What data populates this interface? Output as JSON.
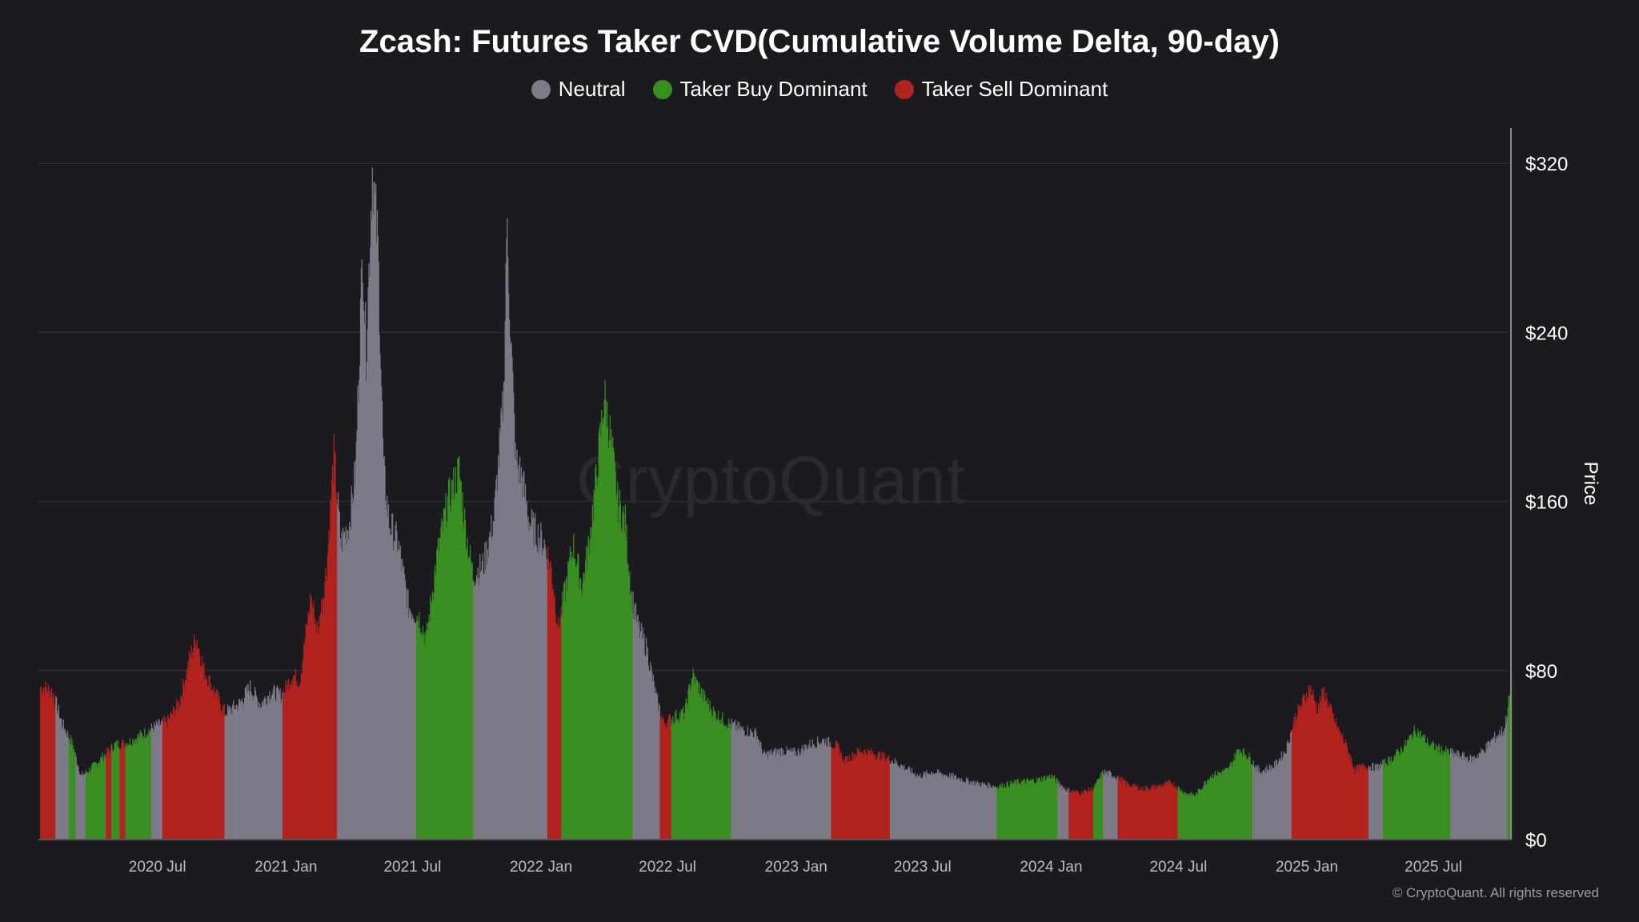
{
  "chart_data": {
    "type": "bar",
    "title": "Zcash: Futures Taker CVD(Cumulative Volume Delta, 90-day)",
    "ylabel": "Price",
    "ylim": [
      0,
      320
    ],
    "y_ticks": [
      "$0",
      "$80",
      "$160",
      "$240",
      "$320"
    ],
    "y_tick_values": [
      0,
      80,
      160,
      240,
      320
    ],
    "x_ticks": [
      "2020 Jul",
      "2021 Jan",
      "2021 Jul",
      "2022 Jan",
      "2022 Jul",
      "2023 Jan",
      "2023 Jul",
      "2024 Jan",
      "2024 Jul",
      "2025 Jan",
      "2025 Jul"
    ],
    "x_tick_dates": [
      "2020-07-01",
      "2021-01-01",
      "2021-07-01",
      "2022-01-01",
      "2022-07-01",
      "2023-01-01",
      "2023-07-01",
      "2024-01-01",
      "2024-07-01",
      "2025-01-01",
      "2025-07-01"
    ],
    "x_range": [
      "2020-01-15",
      "2025-10-20"
    ],
    "grid": true,
    "legend_position": "top-center",
    "legend": [
      {
        "key": "neutral",
        "label": "Neutral",
        "color": "#7c7b86"
      },
      {
        "key": "buy",
        "label": "Taker Buy Dominant",
        "color": "#3a8f22"
      },
      {
        "key": "sell",
        "label": "Taker Sell Dominant",
        "color": "#b2231f"
      }
    ],
    "price_points": [
      [
        "2020-01-20",
        72
      ],
      [
        "2020-02-01",
        70
      ],
      [
        "2020-02-15",
        55
      ],
      [
        "2020-03-01",
        45
      ],
      [
        "2020-03-13",
        30
      ],
      [
        "2020-03-25",
        33
      ],
      [
        "2020-04-10",
        38
      ],
      [
        "2020-05-01",
        45
      ],
      [
        "2020-05-20",
        46
      ],
      [
        "2020-06-10",
        50
      ],
      [
        "2020-06-25",
        53
      ],
      [
        "2020-07-15",
        56
      ],
      [
        "2020-08-01",
        65
      ],
      [
        "2020-08-15",
        85
      ],
      [
        "2020-08-25",
        96
      ],
      [
        "2020-09-05",
        80
      ],
      [
        "2020-09-20",
        70
      ],
      [
        "2020-10-05",
        60
      ],
      [
        "2020-10-25",
        64
      ],
      [
        "2020-11-10",
        72
      ],
      [
        "2020-11-25",
        64
      ],
      [
        "2020-12-10",
        70
      ],
      [
        "2020-12-25",
        68
      ],
      [
        "2021-01-10",
        78
      ],
      [
        "2021-01-20",
        75
      ],
      [
        "2021-02-05",
        115
      ],
      [
        "2021-02-15",
        98
      ],
      [
        "2021-02-28",
        130
      ],
      [
        "2021-03-10",
        182
      ],
      [
        "2021-03-20",
        140
      ],
      [
        "2021-04-01",
        150
      ],
      [
        "2021-04-10",
        175
      ],
      [
        "2021-04-20",
        280
      ],
      [
        "2021-04-25",
        230
      ],
      [
        "2021-05-04",
        318
      ],
      [
        "2021-05-12",
        280
      ],
      [
        "2021-05-20",
        175
      ],
      [
        "2021-05-28",
        150
      ],
      [
        "2021-06-10",
        140
      ],
      [
        "2021-06-25",
        110
      ],
      [
        "2021-07-10",
        105
      ],
      [
        "2021-07-20",
        95
      ],
      [
        "2021-08-05",
        135
      ],
      [
        "2021-08-20",
        160
      ],
      [
        "2021-09-05",
        175
      ],
      [
        "2021-09-15",
        145
      ],
      [
        "2021-09-25",
        125
      ],
      [
        "2021-10-10",
        130
      ],
      [
        "2021-10-25",
        152
      ],
      [
        "2021-11-08",
        210
      ],
      [
        "2021-11-12",
        290
      ],
      [
        "2021-11-18",
        240
      ],
      [
        "2021-11-25",
        180
      ],
      [
        "2021-12-05",
        170
      ],
      [
        "2021-12-15",
        150
      ],
      [
        "2021-12-25",
        145
      ],
      [
        "2022-01-05",
        140
      ],
      [
        "2022-01-15",
        128
      ],
      [
        "2022-01-25",
        100
      ],
      [
        "2022-02-05",
        120
      ],
      [
        "2022-02-15",
        140
      ],
      [
        "2022-02-28",
        120
      ],
      [
        "2022-03-10",
        140
      ],
      [
        "2022-03-20",
        170
      ],
      [
        "2022-04-01",
        210
      ],
      [
        "2022-04-10",
        190
      ],
      [
        "2022-04-20",
        160
      ],
      [
        "2022-05-01",
        150
      ],
      [
        "2022-05-10",
        115
      ],
      [
        "2022-05-20",
        100
      ],
      [
        "2022-06-01",
        90
      ],
      [
        "2022-06-15",
        66
      ],
      [
        "2022-06-25",
        55
      ],
      [
        "2022-07-10",
        58
      ],
      [
        "2022-07-25",
        60
      ],
      [
        "2022-08-05",
        78
      ],
      [
        "2022-08-20",
        68
      ],
      [
        "2022-09-05",
        60
      ],
      [
        "2022-09-25",
        55
      ],
      [
        "2022-10-15",
        52
      ],
      [
        "2022-11-05",
        50
      ],
      [
        "2022-11-15",
        40
      ],
      [
        "2022-12-10",
        42
      ],
      [
        "2023-01-01",
        41
      ],
      [
        "2023-01-20",
        45
      ],
      [
        "2023-02-10",
        47
      ],
      [
        "2023-03-01",
        44
      ],
      [
        "2023-03-10",
        37
      ],
      [
        "2023-04-01",
        42
      ],
      [
        "2023-04-20",
        41
      ],
      [
        "2023-05-15",
        38
      ],
      [
        "2023-06-10",
        33
      ],
      [
        "2023-06-25",
        30
      ],
      [
        "2023-07-15",
        32
      ],
      [
        "2023-08-10",
        30
      ],
      [
        "2023-09-10",
        27
      ],
      [
        "2023-10-15",
        25
      ],
      [
        "2023-11-10",
        27
      ],
      [
        "2023-12-10",
        28
      ],
      [
        "2024-01-01",
        30
      ],
      [
        "2024-01-20",
        24
      ],
      [
        "2024-02-10",
        22
      ],
      [
        "2024-03-01",
        24
      ],
      [
        "2024-03-15",
        32
      ],
      [
        "2024-04-01",
        30
      ],
      [
        "2024-04-20",
        26
      ],
      [
        "2024-05-10",
        24
      ],
      [
        "2024-06-01",
        25
      ],
      [
        "2024-06-20",
        27
      ],
      [
        "2024-07-10",
        22
      ],
      [
        "2024-07-25",
        21
      ],
      [
        "2024-08-15",
        30
      ],
      [
        "2024-09-10",
        33
      ],
      [
        "2024-09-25",
        43
      ],
      [
        "2024-10-10",
        39
      ],
      [
        "2024-10-25",
        32
      ],
      [
        "2024-11-15",
        35
      ],
      [
        "2024-12-01",
        42
      ],
      [
        "2024-12-15",
        58
      ],
      [
        "2025-01-05",
        72
      ],
      [
        "2025-01-15",
        62
      ],
      [
        "2025-01-25",
        70
      ],
      [
        "2025-02-10",
        55
      ],
      [
        "2025-02-25",
        45
      ],
      [
        "2025-03-10",
        33
      ],
      [
        "2025-03-25",
        35
      ],
      [
        "2025-04-10",
        34
      ],
      [
        "2025-05-01",
        38
      ],
      [
        "2025-05-20",
        44
      ],
      [
        "2025-06-05",
        52
      ],
      [
        "2025-06-25",
        45
      ],
      [
        "2025-07-15",
        42
      ],
      [
        "2025-08-05",
        40
      ],
      [
        "2025-08-25",
        38
      ],
      [
        "2025-09-10",
        42
      ],
      [
        "2025-09-25",
        48
      ],
      [
        "2025-10-10",
        52
      ],
      [
        "2025-10-20",
        73
      ]
    ],
    "regimes": [
      {
        "start": "2020-01-15",
        "end": "2020-02-06",
        "state": "sell"
      },
      {
        "start": "2020-02-06",
        "end": "2020-02-25",
        "state": "neutral"
      },
      {
        "start": "2020-02-25",
        "end": "2020-03-06",
        "state": "buy"
      },
      {
        "start": "2020-03-06",
        "end": "2020-03-20",
        "state": "neutral"
      },
      {
        "start": "2020-03-20",
        "end": "2020-04-18",
        "state": "buy"
      },
      {
        "start": "2020-04-18",
        "end": "2020-04-26",
        "state": "sell"
      },
      {
        "start": "2020-04-26",
        "end": "2020-05-08",
        "state": "buy"
      },
      {
        "start": "2020-05-08",
        "end": "2020-05-16",
        "state": "sell"
      },
      {
        "start": "2020-05-16",
        "end": "2020-06-22",
        "state": "buy"
      },
      {
        "start": "2020-06-22",
        "end": "2020-07-08",
        "state": "neutral"
      },
      {
        "start": "2020-07-08",
        "end": "2020-10-05",
        "state": "sell"
      },
      {
        "start": "2020-10-05",
        "end": "2020-12-27",
        "state": "neutral"
      },
      {
        "start": "2020-12-27",
        "end": "2021-02-18",
        "state": "sell"
      },
      {
        "start": "2021-02-18",
        "end": "2021-03-15",
        "state": "sell"
      },
      {
        "start": "2021-03-15",
        "end": "2021-07-06",
        "state": "neutral"
      },
      {
        "start": "2021-07-06",
        "end": "2021-09-26",
        "state": "buy"
      },
      {
        "start": "2021-09-26",
        "end": "2022-01-10",
        "state": "neutral"
      },
      {
        "start": "2022-01-10",
        "end": "2022-01-30",
        "state": "sell"
      },
      {
        "start": "2022-01-30",
        "end": "2022-05-12",
        "state": "buy"
      },
      {
        "start": "2022-05-12",
        "end": "2022-06-20",
        "state": "neutral"
      },
      {
        "start": "2022-06-20",
        "end": "2022-07-06",
        "state": "sell"
      },
      {
        "start": "2022-07-06",
        "end": "2022-09-30",
        "state": "buy"
      },
      {
        "start": "2022-09-30",
        "end": "2023-02-20",
        "state": "neutral"
      },
      {
        "start": "2023-02-20",
        "end": "2023-05-15",
        "state": "sell"
      },
      {
        "start": "2023-05-15",
        "end": "2023-10-15",
        "state": "neutral"
      },
      {
        "start": "2023-10-15",
        "end": "2024-01-10",
        "state": "buy"
      },
      {
        "start": "2024-01-10",
        "end": "2024-01-26",
        "state": "neutral"
      },
      {
        "start": "2024-01-26",
        "end": "2024-03-01",
        "state": "sell"
      },
      {
        "start": "2024-03-01",
        "end": "2024-03-15",
        "state": "buy"
      },
      {
        "start": "2024-03-15",
        "end": "2024-04-05",
        "state": "neutral"
      },
      {
        "start": "2024-04-05",
        "end": "2024-06-30",
        "state": "sell"
      },
      {
        "start": "2024-06-30",
        "end": "2024-10-15",
        "state": "buy"
      },
      {
        "start": "2024-10-15",
        "end": "2024-12-10",
        "state": "neutral"
      },
      {
        "start": "2024-12-10",
        "end": "2025-03-30",
        "state": "sell"
      },
      {
        "start": "2025-03-30",
        "end": "2025-04-20",
        "state": "neutral"
      },
      {
        "start": "2025-04-20",
        "end": "2025-07-25",
        "state": "buy"
      },
      {
        "start": "2025-07-25",
        "end": "2025-10-15",
        "state": "neutral"
      },
      {
        "start": "2025-10-15",
        "end": "2025-10-21",
        "state": "buy"
      }
    ],
    "watermark": "CryptoQuant"
  },
  "footer": {
    "copyright": "© CryptoQuant. All rights reserved"
  }
}
